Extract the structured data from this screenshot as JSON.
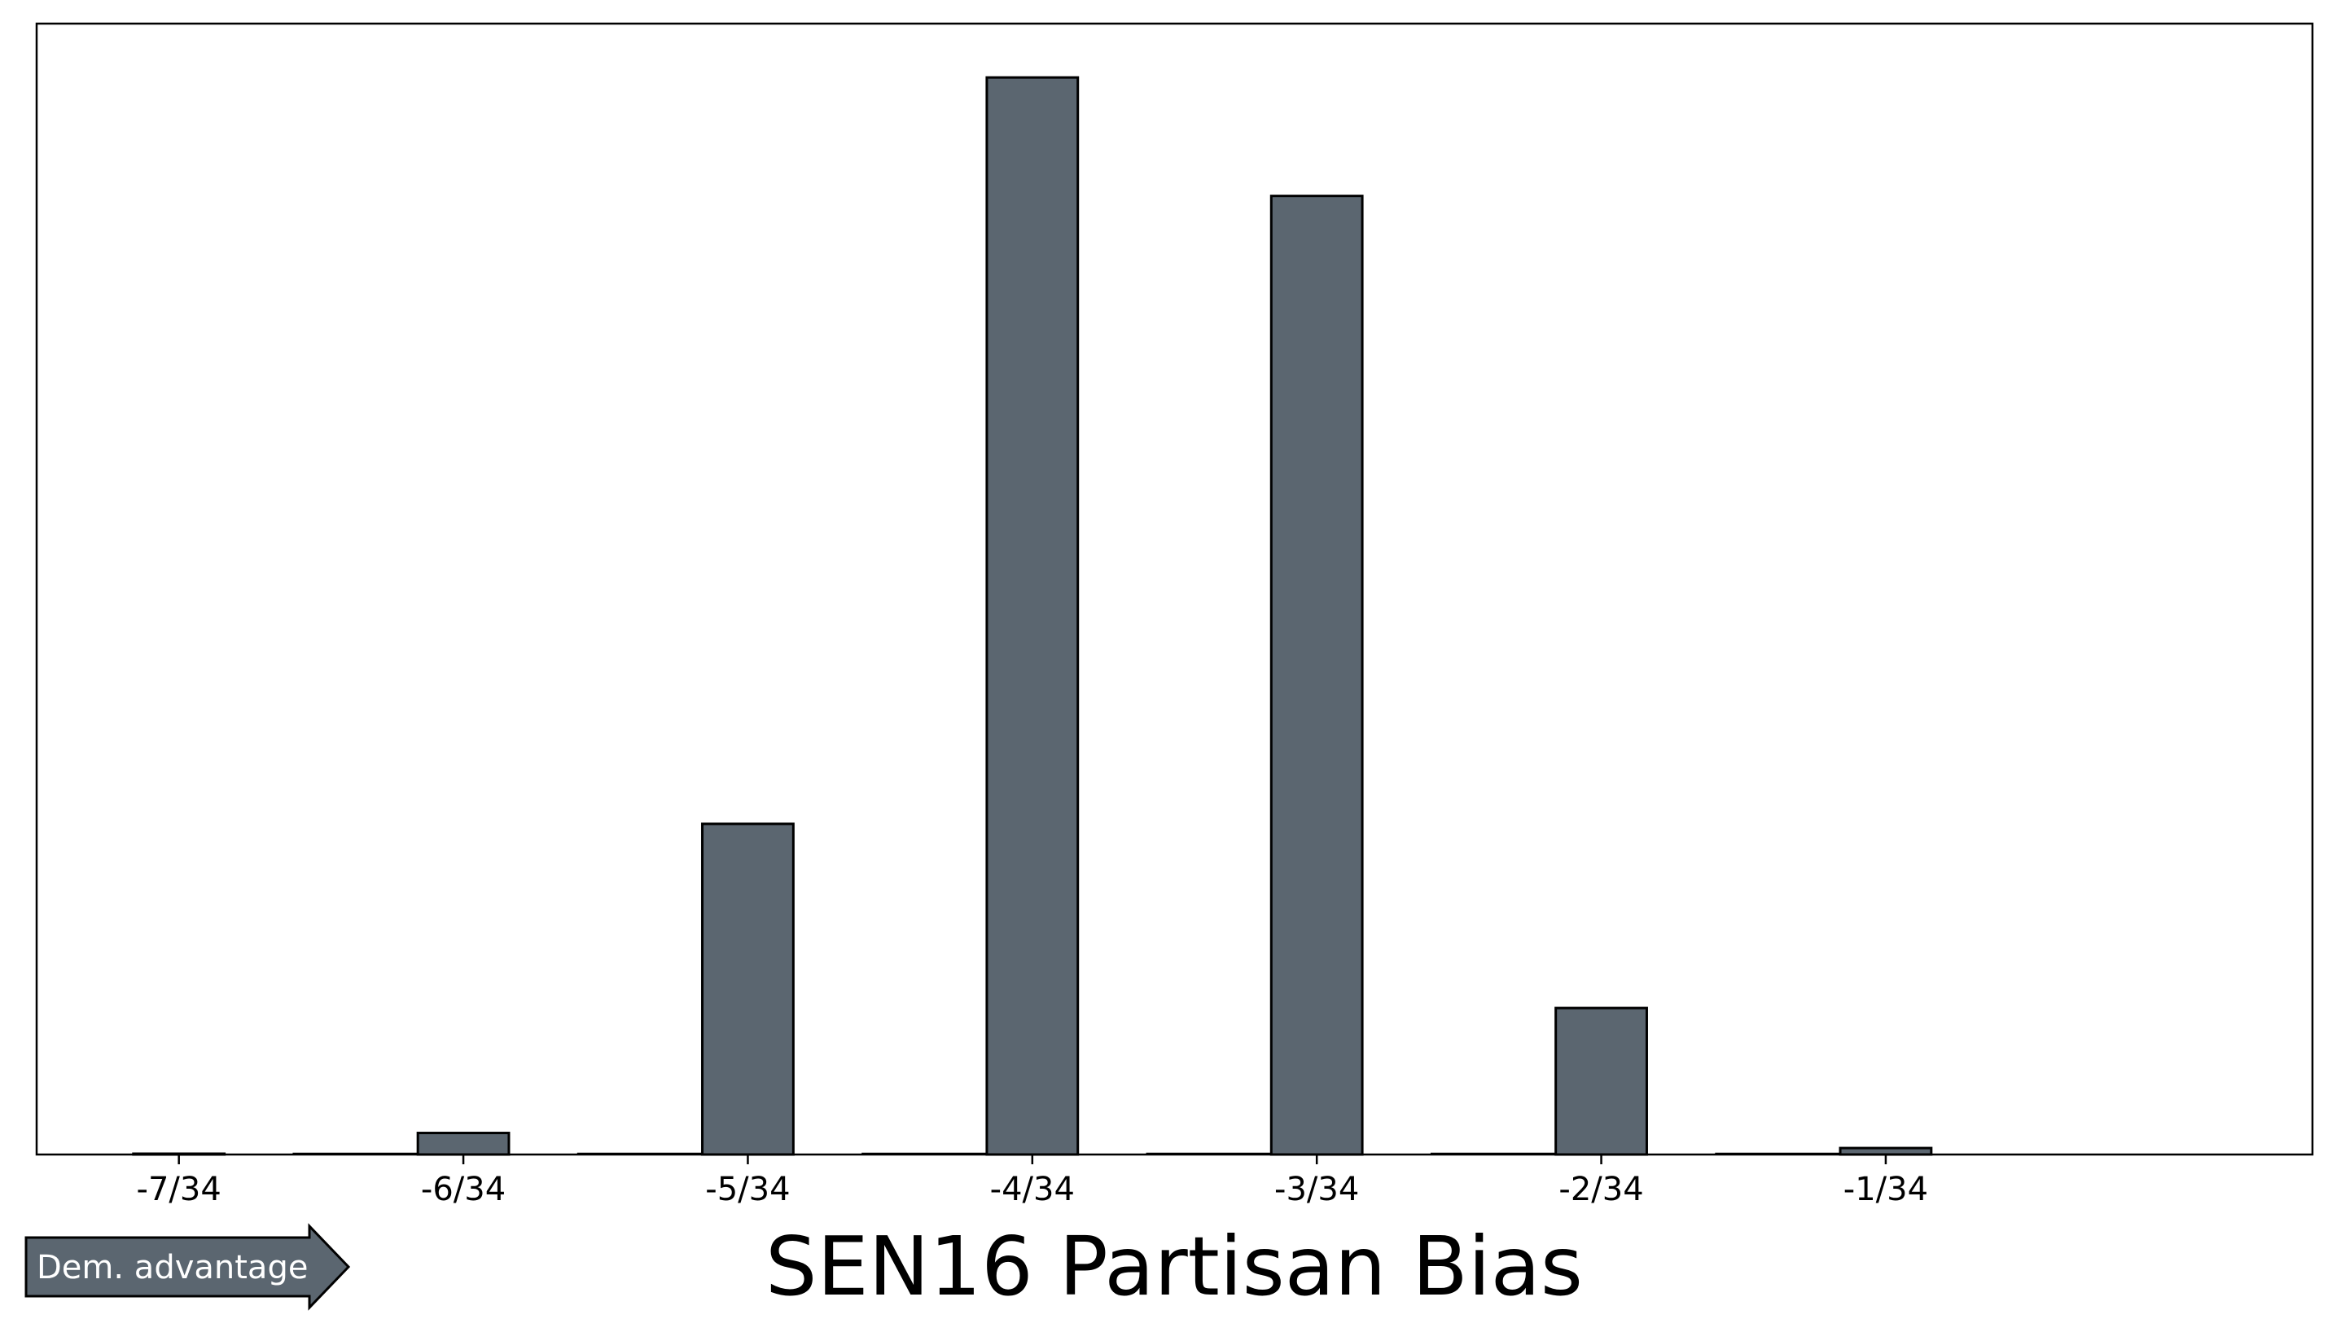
{
  "chart_data": {
    "type": "bar",
    "title": "SEN16 Partisan Bias",
    "xlabel": "",
    "ylabel": "",
    "x_domain": [
      -7.5,
      0.5
    ],
    "ylim": [
      0,
      1.05
    ],
    "ticks": [
      {
        "value": -7,
        "label": "-7/34"
      },
      {
        "value": -6,
        "label": "-6/34"
      },
      {
        "value": -5,
        "label": "-5/34"
      },
      {
        "value": -4,
        "label": "-4/34"
      },
      {
        "value": -3,
        "label": "-3/34"
      },
      {
        "value": -2,
        "label": "-2/34"
      },
      {
        "value": -1,
        "label": "-1/34"
      }
    ],
    "bars": [
      {
        "x": -7,
        "value": 0.0
      },
      {
        "x": -6,
        "value": 0.02
      },
      {
        "x": -5,
        "value": 0.307
      },
      {
        "x": -4,
        "value": 1.0
      },
      {
        "x": -3,
        "value": 0.89
      },
      {
        "x": -2,
        "value": 0.136
      },
      {
        "x": -1,
        "value": 0.006
      }
    ],
    "baseline_segments": [
      {
        "from": -6.6,
        "to": -6.1
      },
      {
        "from": -5.6,
        "to": -5.1
      },
      {
        "from": -4.6,
        "to": -4.1
      },
      {
        "from": -3.6,
        "to": -3.1
      },
      {
        "from": -2.6,
        "to": -2.1
      },
      {
        "from": -1.6,
        "to": -1.1
      }
    ],
    "grid": false,
    "bar_color": "#5b6670",
    "bar_edge_color": "#000000"
  },
  "annotation": {
    "label": "Dem. advantage",
    "color": "#5b6670"
  }
}
